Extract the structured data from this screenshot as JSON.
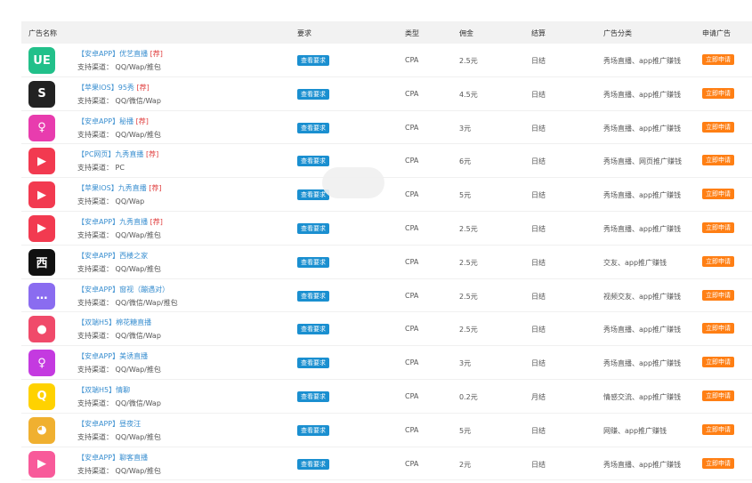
{
  "header": {
    "name": "广告名称",
    "requirement": "要求",
    "type": "类型",
    "commission": "佣金",
    "settlement": "结算",
    "category": "广告分类",
    "apply": "申请广告"
  },
  "labels": {
    "view_requirement": "查看要求",
    "apply_now": "立即申请",
    "channel_prefix": "支持渠道："
  },
  "colors": {
    "link": "#3a8fd0",
    "tag": "#e04040",
    "view_button": "#1a8fd0",
    "apply_button": "#ff7f14"
  },
  "rows": [
    {
      "icon": {
        "name": "ue-app-icon",
        "bg": "#22c08a",
        "glyph": "UE"
      },
      "platform": "【安卓APP】",
      "title": "优艺直播",
      "tag": "[荐]",
      "channels": "QQ/Wap/推包",
      "type": "CPA",
      "commission": "2.5元",
      "settlement": "日结",
      "category": "秀场直播、app推广赚钱"
    },
    {
      "icon": {
        "name": "95xiu-app-icon",
        "bg": "#222222",
        "glyph": "S"
      },
      "platform": "【苹果IOS】",
      "title": "95秀",
      "tag": "[荐]",
      "channels": "QQ/微信/Wap",
      "type": "CPA",
      "commission": "4.5元",
      "settlement": "日结",
      "category": "秀场直播、app推广赚钱"
    },
    {
      "icon": {
        "name": "mibo-app-icon",
        "bg": "#e83cae",
        "glyph": "♀"
      },
      "platform": "【安卓APP】",
      "title": "秘播",
      "tag": "[荐]",
      "channels": "QQ/Wap/推包",
      "type": "CPA",
      "commission": "3元",
      "settlement": "日结",
      "category": "秀场直播、app推广赚钱"
    },
    {
      "icon": {
        "name": "jiuxiu-app-icon",
        "bg": "#f23a50",
        "glyph": "▶"
      },
      "platform": "【PC网页】",
      "title": "九秀直播",
      "tag": "[荐]",
      "channels": "PC",
      "type": "CPA",
      "commission": "6元",
      "settlement": "日结",
      "category": "秀场直播、网页推广赚钱"
    },
    {
      "icon": {
        "name": "jiuxiu-app-icon",
        "bg": "#f23a50",
        "glyph": "▶"
      },
      "platform": "【苹果IOS】",
      "title": "九秀直播",
      "tag": "[荐]",
      "channels": "QQ/Wap",
      "type": "CPA",
      "commission": "5元",
      "settlement": "日结",
      "category": "秀场直播、app推广赚钱"
    },
    {
      "icon": {
        "name": "jiuxiu-app-icon",
        "bg": "#f23a50",
        "glyph": "▶"
      },
      "platform": "【安卓APP】",
      "title": "九秀直播",
      "tag": "[荐]",
      "channels": "QQ/Wap/推包",
      "type": "CPA",
      "commission": "2.5元",
      "settlement": "日结",
      "category": "秀场直播、app推广赚钱"
    },
    {
      "icon": {
        "name": "xilou-app-icon",
        "bg": "#111111",
        "glyph": "西"
      },
      "platform": "【安卓APP】",
      "title": "西楼之家",
      "tag": "",
      "channels": "QQ/Wap/推包",
      "type": "CPA",
      "commission": "2.5元",
      "settlement": "日结",
      "category": "交友、app推广赚钱"
    },
    {
      "icon": {
        "name": "chat-app-icon",
        "bg": "#8a6cf0",
        "glyph": "…"
      },
      "platform": "【安卓APP】",
      "title": "窗视（蹦遇对）",
      "tag": "",
      "channels": "QQ/微信/Wap/推包",
      "type": "CPA",
      "commission": "2.5元",
      "settlement": "日结",
      "category": "视频交友、app推广赚钱"
    },
    {
      "icon": {
        "name": "mianhuatang-app-icon",
        "bg": "#f04a6a",
        "glyph": "●"
      },
      "platform": "【双端H5】",
      "title": "棉花糖直播",
      "tag": "",
      "channels": "QQ/微信/Wap",
      "type": "CPA",
      "commission": "2.5元",
      "settlement": "日结",
      "category": "秀场直播、app推广赚钱"
    },
    {
      "icon": {
        "name": "meiyou-app-icon",
        "bg": "#c43ae0",
        "glyph": "♀"
      },
      "platform": "【安卓APP】",
      "title": "美诱直播",
      "tag": "",
      "channels": "QQ/Wap/推包",
      "type": "CPA",
      "commission": "3元",
      "settlement": "日结",
      "category": "秀场直播、app推广赚钱"
    },
    {
      "icon": {
        "name": "qingliao-app-icon",
        "bg": "#ffd200",
        "glyph": "Q"
      },
      "platform": "【双端H5】",
      "title": "情聊",
      "tag": "",
      "channels": "QQ/微信/Wap",
      "type": "CPA",
      "commission": "0.2元",
      "settlement": "月结",
      "category": "情感交流、app推广赚钱"
    },
    {
      "icon": {
        "name": "dog-app-icon",
        "bg": "#f0b030",
        "glyph": "◕"
      },
      "platform": "【安卓APP】",
      "title": "昼夜汪",
      "tag": "",
      "channels": "QQ/Wap/推包",
      "type": "CPA",
      "commission": "5元",
      "settlement": "日结",
      "category": "网赚、app推广赚钱"
    },
    {
      "icon": {
        "name": "liaoke-app-icon",
        "bg": "#f85a9a",
        "glyph": "▶"
      },
      "platform": "【安卓APP】",
      "title": "聊客直播",
      "tag": "",
      "channels": "QQ/Wap/推包",
      "type": "CPA",
      "commission": "2元",
      "settlement": "日结",
      "category": "秀场直播、app推广赚钱"
    }
  ]
}
